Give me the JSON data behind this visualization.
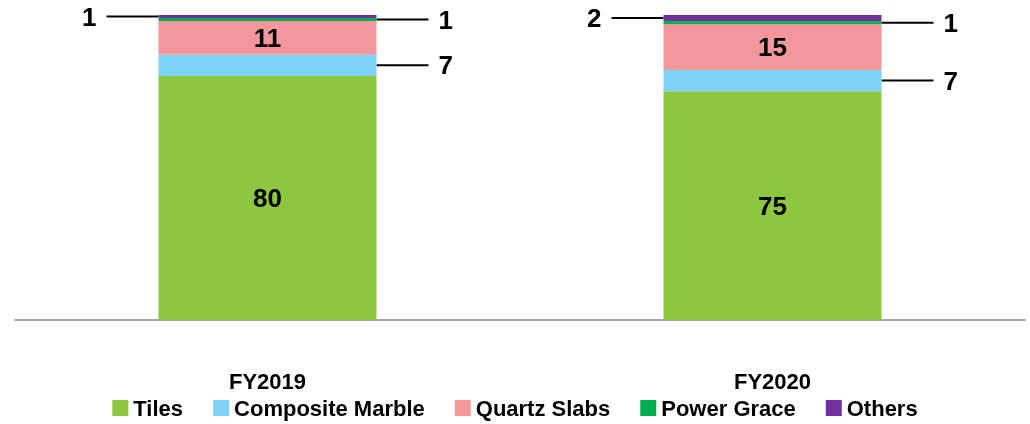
{
  "chart_data": {
    "type": "bar",
    "stacked": true,
    "data_labels": true,
    "legend": "bottom",
    "grid": false,
    "categories": [
      "FY2019",
      "FY2020"
    ],
    "series": [
      {
        "name": "Tiles",
        "color": "#8dc63f",
        "values": [
          80,
          75
        ]
      },
      {
        "name": "Composite Marble",
        "color": "#7dd3f7",
        "values": [
          7,
          7
        ]
      },
      {
        "name": "Quartz Slabs",
        "color": "#f4979c",
        "values": [
          11,
          15
        ]
      },
      {
        "name": "Power Grace",
        "color": "#00b050",
        "values": [
          1,
          1
        ]
      },
      {
        "name": "Others",
        "color": "#7030a0",
        "values": [
          1,
          2
        ]
      }
    ]
  }
}
